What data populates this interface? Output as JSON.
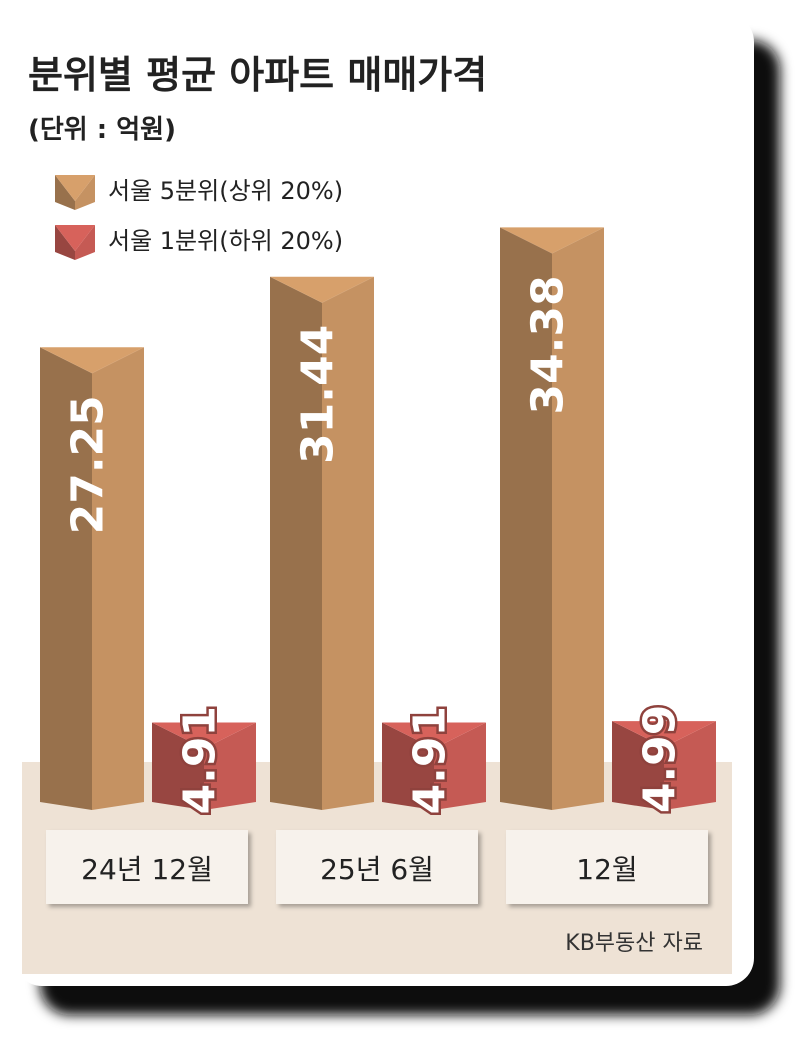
{
  "chart_data": {
    "type": "bar3d",
    "title": "분위별 평균 아파트 매매가격",
    "subtitle": "(단위 : 억원)",
    "categories": [
      "24년 12월",
      "25년 6월",
      "12월"
    ],
    "series": [
      {
        "name": "서울 5분위(상위 20%)",
        "color": "#b38559",
        "values": [
          27.25,
          31.44,
          34.38
        ]
      },
      {
        "name": "서울 1분위(하위 20%)",
        "color": "#b3524c",
        "values": [
          4.91,
          4.91,
          4.99
        ]
      }
    ],
    "source": "KB부동산 자료"
  }
}
